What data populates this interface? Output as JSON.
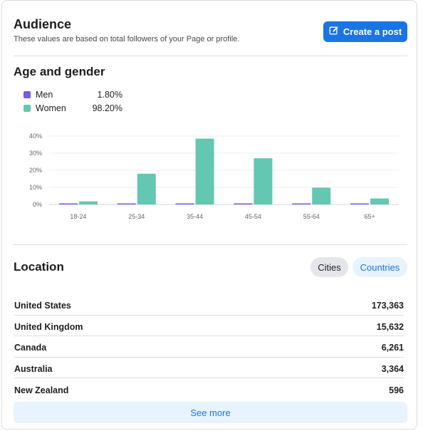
{
  "audience": {
    "title": "Audience",
    "subtitle": "These values are based on total followers of your Page or profile.",
    "create_post_label": "Create a post"
  },
  "age_gender": {
    "title": "Age and gender",
    "legend": [
      {
        "label": "Men",
        "value": "1.80%",
        "color": "#7a5ae0"
      },
      {
        "label": "Women",
        "value": "98.20%",
        "color": "#63c7b2"
      }
    ]
  },
  "chart_data": {
    "type": "bar",
    "categories": [
      "18-24",
      "25-34",
      "35-44",
      "45-54",
      "55-64",
      "65+"
    ],
    "series": [
      {
        "name": "Men",
        "color": "#7a5ae0",
        "values": [
          0.2,
          0.3,
          0.6,
          0.4,
          0.2,
          0.1
        ]
      },
      {
        "name": "Women",
        "color": "#63c7b2",
        "values": [
          1.8,
          18,
          38.5,
          27,
          9.8,
          3.5
        ]
      }
    ],
    "ytick_labels": [
      "0%",
      "10%",
      "20%",
      "30%",
      "40%"
    ],
    "yticks": [
      0,
      10,
      20,
      30,
      40
    ],
    "ylim": [
      0,
      40
    ],
    "grid": true,
    "xlabel": "",
    "ylabel": ""
  },
  "location": {
    "title": "Location",
    "tabs": {
      "cities": "Cities",
      "countries": "Countries"
    },
    "rows": [
      {
        "name": "United States",
        "value": "173,363"
      },
      {
        "name": "United Kingdom",
        "value": "15,632"
      },
      {
        "name": "Canada",
        "value": "6,261"
      },
      {
        "name": "Australia",
        "value": "3,364"
      },
      {
        "name": "New Zealand",
        "value": "596"
      }
    ],
    "see_more_label": "See more"
  }
}
